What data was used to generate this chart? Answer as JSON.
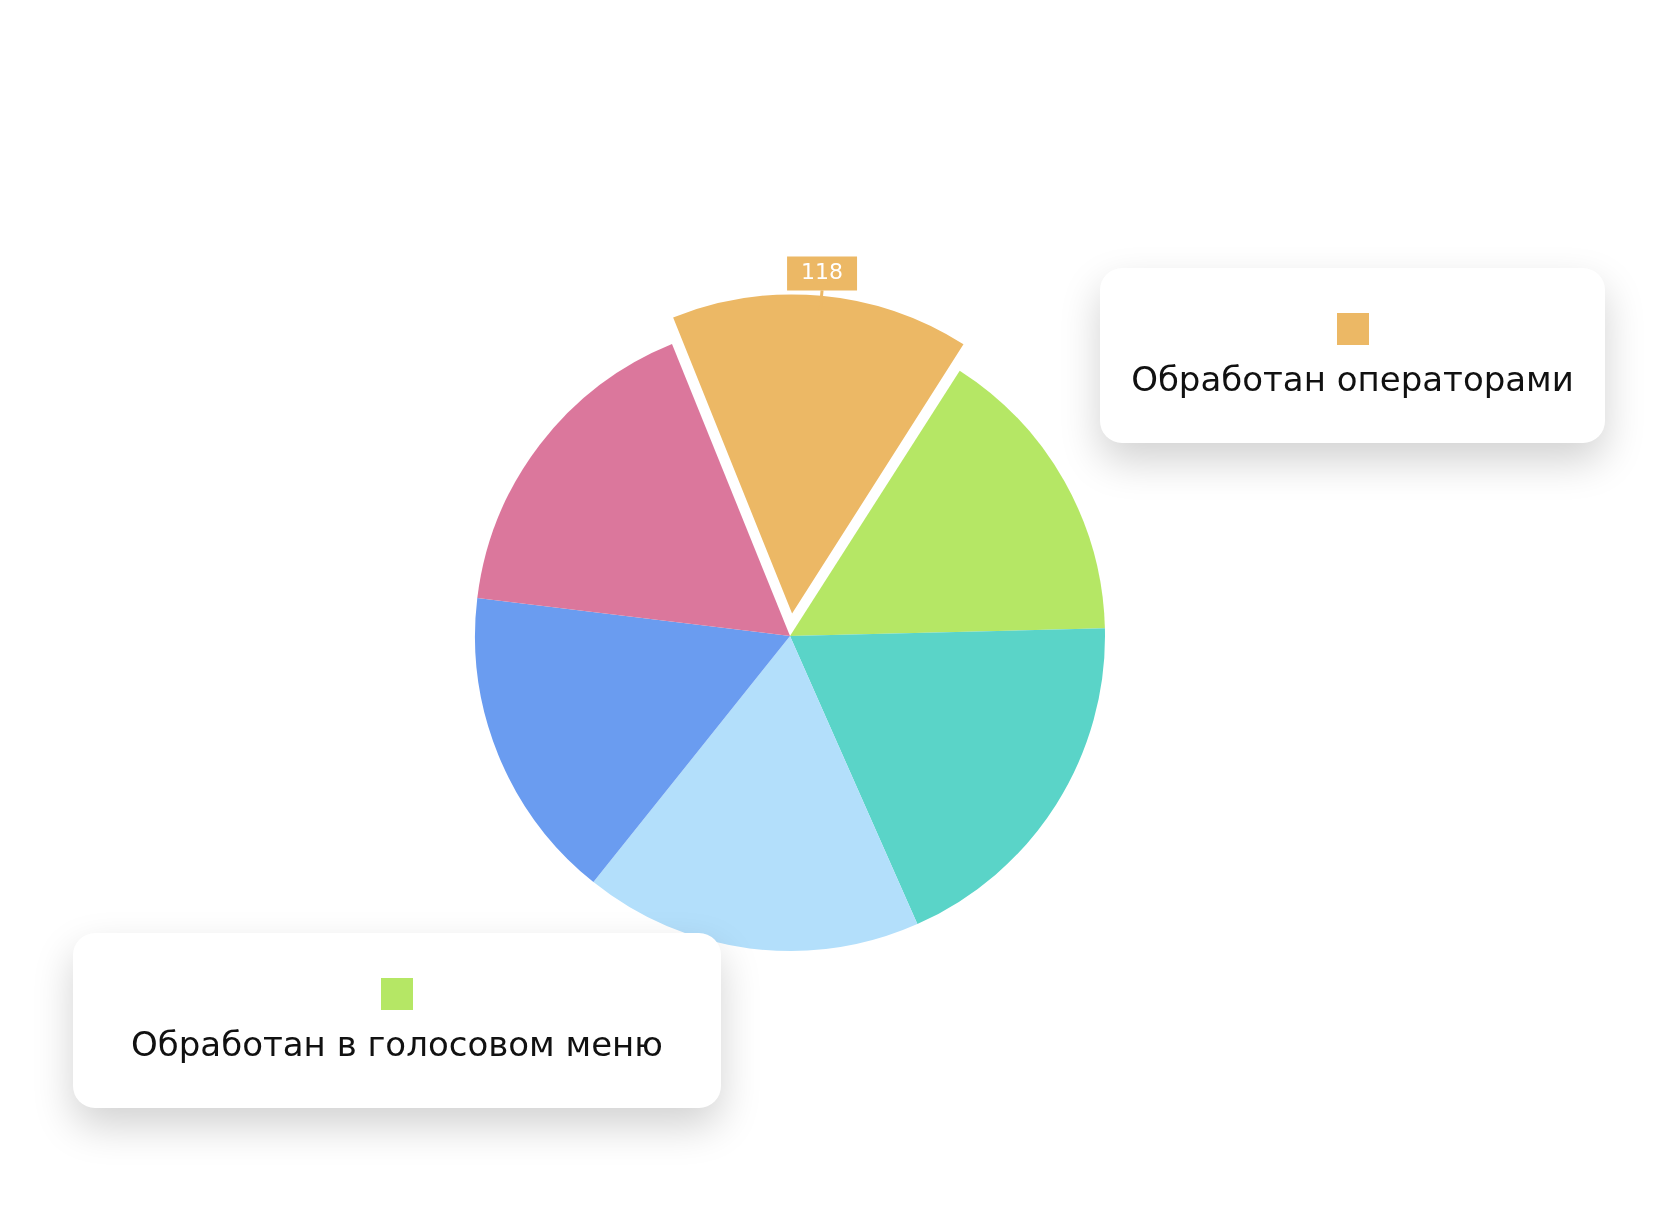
{
  "chart_data": {
    "type": "pie",
    "categories": [
      "Обработан операторами",
      "Обработан в голосовом меню",
      null,
      null,
      null,
      null
    ],
    "values": [
      118,
      121,
      146,
      135,
      126,
      132
    ],
    "colors": [
      "#ecb865",
      "#b5e765",
      "#5ad4c8",
      "#b3dffb",
      "#6a9cf0",
      "#db779c"
    ],
    "value_labels": [
      "118",
      null,
      null,
      null,
      null,
      null
    ],
    "legend": "right"
  }
}
